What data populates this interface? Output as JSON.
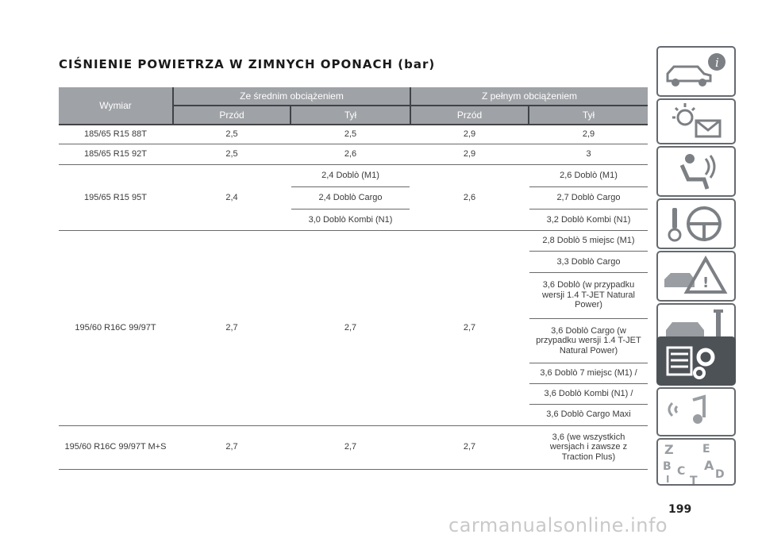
{
  "title": "CIŚNIENIE POWIETRZA W ZIMNYCH OPONACH (bar)",
  "table": {
    "col_size": "Wymiar",
    "group_medium": "Ze średnim obciążeniem",
    "group_full": "Z pełnym obciążeniem",
    "front": "Przód",
    "rear": "Tył",
    "rows": [
      {
        "size": "185/65 R15 88T",
        "mf": "2,5",
        "mr": "2,5",
        "ff": "2,9",
        "fr": "2,9"
      },
      {
        "size": "185/65 R15 92T",
        "mf": "2,5",
        "mr": "2,6",
        "ff": "2,9",
        "fr": "3"
      },
      {
        "size": "195/65 R15 95T",
        "mf": "2,4",
        "mr": [
          "2,4 Doblò (M1)",
          "2,4 Doblò Cargo",
          "3,0 Doblò Kombi (N1)"
        ],
        "ff": "2,6",
        "fr": [
          "2,6 Doblò (M1)",
          "2,7 Doblò Cargo",
          "3,2 Doblò Kombi (N1)"
        ]
      },
      {
        "size": "195/60 R16C 99/97T",
        "mf": "2,7",
        "mr": "2,7",
        "ff": "2,7",
        "fr": [
          "2,8 Doblò 5 miejsc (M1)",
          "3,3 Doblò Cargo",
          "3,6 Doblò (w przypadku wersji 1.4 T-JET Natural Power)",
          "3,6 Doblò Cargo (w przypadku wersji 1.4 T-JET Natural Power)",
          "3,6 Doblò 7 miejsc (M1) /",
          "3,6 Doblò Kombi (N1) /",
          "3,6 Doblò Cargo Maxi"
        ]
      },
      {
        "size": "195/60 R16C 99/97T M+S",
        "mf": "2,7",
        "mr": "2,7",
        "ff": "2,7",
        "fr": "3,6 (we wszystkich wersjach i zawsze z Traction Plus)"
      }
    ]
  },
  "sidebar": {
    "tabs": [
      {
        "icon": "car-info-icon",
        "active": false
      },
      {
        "icon": "warning-light-message-icon",
        "active": false
      },
      {
        "icon": "seat-airbag-icon",
        "active": false
      },
      {
        "icon": "steering-key-icon",
        "active": false
      },
      {
        "icon": "emergency-triangle-car-icon",
        "active": false
      },
      {
        "icon": "car-maintenance-wrench-icon",
        "active": false
      },
      {
        "icon": "specs-list-gears-icon",
        "active": true
      },
      {
        "icon": "multimedia-music-icon",
        "active": false
      },
      {
        "icon": "alphabetical-index-icon",
        "active": false,
        "letters": [
          "Z",
          "E",
          "B",
          "A",
          "C",
          "D",
          "I",
          "T"
        ]
      }
    ]
  },
  "page_number": "199",
  "watermark": "carmanualsonline.info",
  "colors": {
    "header_gray": "#9fa2a6",
    "header_dark": "#3f4448",
    "tab_active": "#4d5257",
    "tab_border": "#666a6e"
  }
}
